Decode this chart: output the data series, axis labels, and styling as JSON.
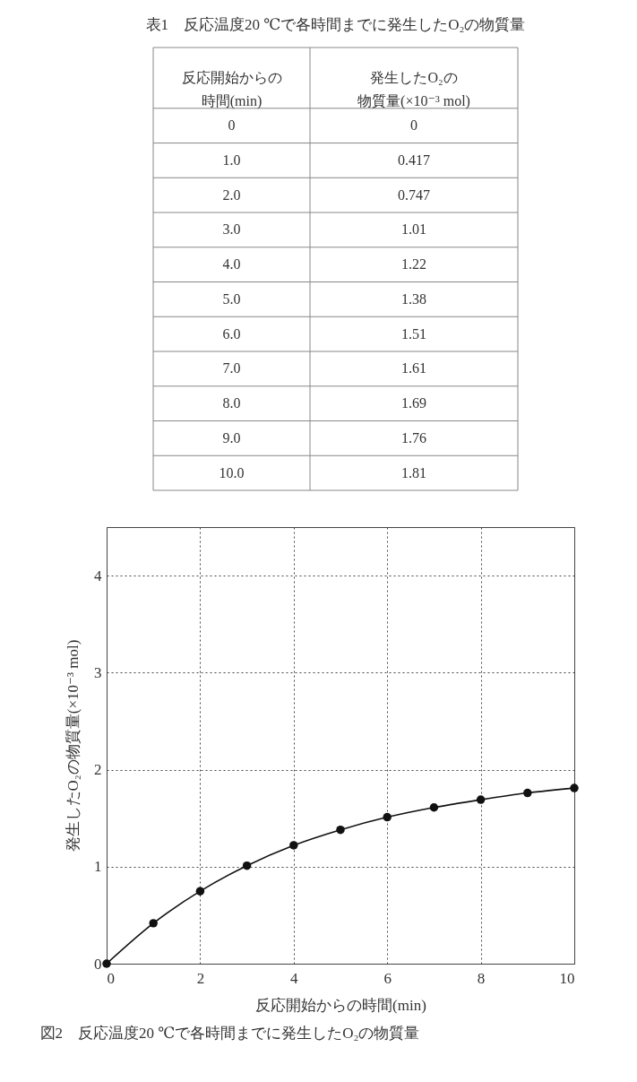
{
  "chart_data": [
    {
      "type": "heatmap",
      "title": "表1　反応温度20 ℃で各時間までに発生したO₂の物質量",
      "ylabel": "反応開始からの時間(min)",
      "categories": [
        "発生したO₂の物質量(×10⁻³ mol)"
      ],
      "y_categories": [
        "0",
        "1.0",
        "2.0",
        "3.0",
        "4.0",
        "5.0",
        "6.0",
        "7.0",
        "8.0",
        "9.0",
        "10.0"
      ],
      "cells": [
        [
          0
        ],
        [
          0.417
        ],
        [
          0.747
        ],
        [
          1.01
        ],
        [
          1.22
        ],
        [
          1.38
        ],
        [
          1.51
        ],
        [
          1.61
        ],
        [
          1.69
        ],
        [
          1.76
        ],
        [
          1.81
        ]
      ],
      "data_labels": true
    },
    {
      "type": "line",
      "xlabel": "反応開始からの時間(min)",
      "ylabel": "発生したO₂の物質量(×10⁻³ mol)",
      "annotations": [
        "図2　反応温度20 ℃で各時間までに発生したO₂の物質量"
      ],
      "x": [
        0,
        1,
        2,
        3,
        4,
        5,
        6,
        7,
        8,
        9,
        10
      ],
      "values": [
        0,
        0.417,
        0.747,
        1.01,
        1.22,
        1.38,
        1.51,
        1.61,
        1.69,
        1.76,
        1.81
      ],
      "color": "#111111",
      "xlim": [
        0,
        10
      ],
      "xticks": [
        0,
        2,
        4,
        6,
        8,
        10
      ],
      "ylim": [
        0,
        4.5
      ],
      "yticks": [
        0,
        1,
        2,
        3,
        4
      ],
      "grid": true,
      "marker": "circle"
    }
  ]
}
